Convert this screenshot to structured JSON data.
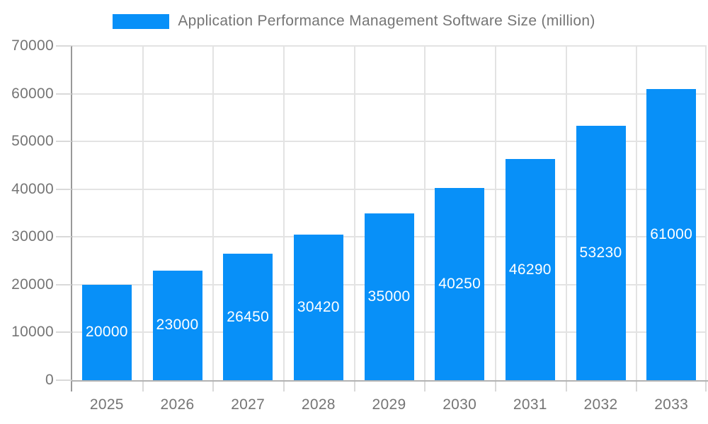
{
  "chart_data": {
    "type": "bar",
    "title": "",
    "legend": {
      "label": "Application Performance Management Software Size (million)",
      "position": "top-center"
    },
    "categories": [
      "2025",
      "2026",
      "2027",
      "2028",
      "2029",
      "2030",
      "2031",
      "2032",
      "2033"
    ],
    "values": [
      20000,
      23000,
      26450,
      30420,
      35000,
      40250,
      46290,
      53230,
      61000
    ],
    "value_labels": [
      "20000",
      "23000",
      "26450",
      "30420",
      "35000",
      "40250",
      "46290",
      "53230",
      "61000"
    ],
    "xlabel": "",
    "ylabel": "",
    "ylim": [
      0,
      70000
    ],
    "yticks": [
      0,
      10000,
      20000,
      30000,
      40000,
      50000,
      60000,
      70000
    ],
    "ytick_labels": [
      "0",
      "10000",
      "20000",
      "30000",
      "40000",
      "50000",
      "60000",
      "70000"
    ],
    "grid": true,
    "value_labels_position": "center-inside-bar",
    "colors": {
      "bar": "#0890f8",
      "value_label": "#ffffff",
      "axis_text": "#757575",
      "legend_text": "#757575",
      "gridline": "#e3e3e3",
      "tick": "#d9d9d9",
      "y_axis_line": "#999999",
      "x_axis_line": "#b3b3b3",
      "background": "#ffffff"
    }
  }
}
